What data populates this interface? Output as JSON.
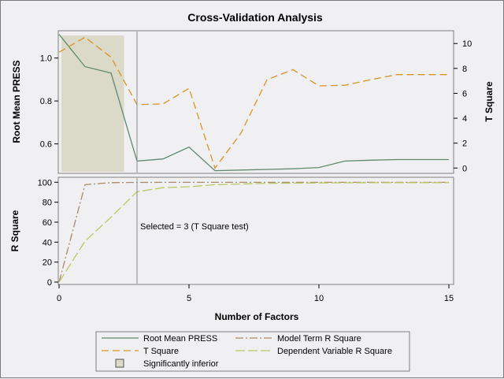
{
  "chart_data": {
    "type": "line",
    "title": "Cross-Validation Analysis",
    "xlabel": "Number of Factors",
    "x": [
      0,
      1,
      2,
      3,
      4,
      5,
      6,
      7,
      8,
      9,
      10,
      11,
      12,
      13,
      14,
      15
    ],
    "xlim": [
      0,
      15
    ],
    "xticks": [
      0,
      5,
      10,
      15
    ],
    "selected_x": 3,
    "selected_label": "Selected = 3 (T Square test)",
    "shaded_region": {
      "x": [
        0,
        2.5
      ],
      "label": "Significantly inferior",
      "color": "#dbd9c7"
    },
    "top_panel": {
      "left_axis": {
        "label": "Root Mean PRESS",
        "ylim": [
          0.47,
          1.12
        ],
        "ticks": [
          0.6,
          0.8,
          1.0
        ],
        "tick_labels": [
          "0.6",
          "0.8",
          "1.0"
        ]
      },
      "right_axis": {
        "label": "T Square",
        "ylim": [
          -0.3,
          10.9
        ],
        "ticks": [
          0,
          2,
          4,
          6,
          8,
          10
        ],
        "tick_labels": [
          "0",
          "2",
          "4",
          "6",
          "8",
          "10"
        ]
      },
      "series": [
        {
          "name": "Root Mean PRESS",
          "axis": "left",
          "color": "#5f8a6e",
          "dash": "",
          "values": [
            1.11,
            0.96,
            0.93,
            0.52,
            0.53,
            0.585,
            0.475,
            0.478,
            0.481,
            0.484,
            0.49,
            0.52,
            0.524,
            0.527,
            0.527,
            0.527
          ]
        },
        {
          "name": "T Square",
          "axis": "right",
          "color": "#d99326",
          "dash": "9,5",
          "values": [
            9.3,
            10.5,
            8.9,
            5.1,
            5.15,
            6.4,
            0,
            2.8,
            7.1,
            7.9,
            6.6,
            6.65,
            7.1,
            7.5,
            7.5,
            7.5
          ]
        }
      ]
    },
    "bottom_panel": {
      "axis": {
        "label": "R Square",
        "ylim": [
          0,
          101
        ],
        "ticks": [
          0,
          20,
          40,
          60,
          80,
          100
        ],
        "tick_labels": [
          "0",
          "20",
          "40",
          "60",
          "80",
          "100"
        ]
      },
      "series": [
        {
          "name": "Model Term R Square",
          "color": "#a88a6c",
          "dash": "10,3,2,3",
          "values": [
            0,
            97.5,
            99.6,
            99.8,
            99.9,
            99.9,
            99.9,
            99.9,
            99.9,
            99.9,
            99.9,
            99.9,
            99.9,
            99.9,
            99.9,
            99.9
          ]
        },
        {
          "name": "Dependent Variable R Square",
          "color": "#b9c862",
          "dash": "12,4",
          "values": [
            0,
            41,
            65,
            90.5,
            94.5,
            95.5,
            97.5,
            98.2,
            98.8,
            99.1,
            99.3,
            99.4,
            99.5,
            99.6,
            99.6,
            99.6
          ]
        }
      ]
    },
    "legend": {
      "placement": "bottom",
      "items": [
        {
          "label": "Root Mean PRESS",
          "kind": "line",
          "color": "#5f8a6e",
          "dash": ""
        },
        {
          "label": "Model Term R Square",
          "kind": "line",
          "color": "#a88a6c",
          "dash": "10,3,2,3"
        },
        {
          "label": "T Square",
          "kind": "line",
          "color": "#d99326",
          "dash": "9,5"
        },
        {
          "label": "Dependent Variable R Square",
          "kind": "line",
          "color": "#b9c862",
          "dash": "12,4"
        },
        {
          "label": "Significantly inferior",
          "kind": "box",
          "color": "#dbd9c7",
          "dash": ""
        }
      ]
    }
  }
}
